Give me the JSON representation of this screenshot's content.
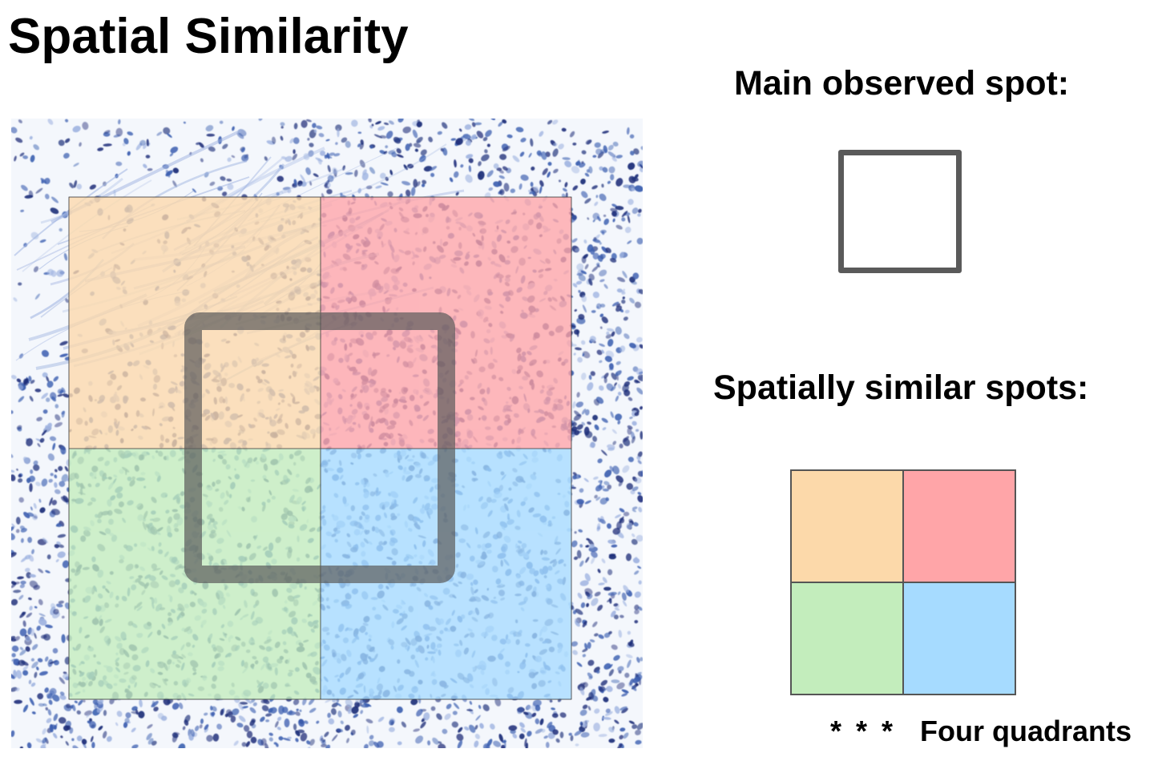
{
  "title": "Spatial Similarity",
  "legend": {
    "main_label": "Main observed spot:",
    "similar_label": "Spatially similar spots:",
    "footnote_stars": "* * *",
    "footnote_text": "Four quadrants"
  },
  "colors": {
    "top_left": "#fcd9aa",
    "top_right": "#ffa5a8",
    "bottom_left": "#c3edbc",
    "bottom_right": "#a6dbff",
    "main_spot": "#5a5a5a",
    "stain_dark": "#1f2f7a",
    "stain_mid": "#3c5fb0",
    "stain_light": "#9fb3e0"
  }
}
